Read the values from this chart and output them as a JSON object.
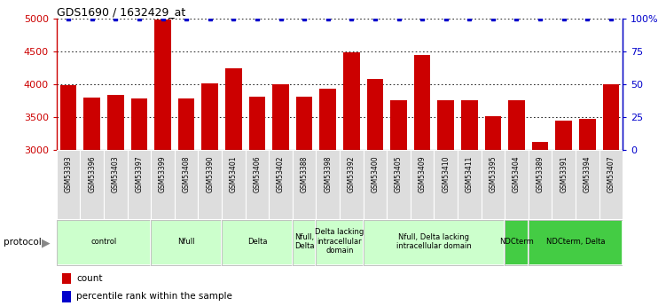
{
  "title": "GDS1690 / 1632429_at",
  "samples": [
    "GSM53393",
    "GSM53396",
    "GSM53403",
    "GSM53397",
    "GSM53399",
    "GSM53408",
    "GSM53390",
    "GSM53401",
    "GSM53406",
    "GSM53402",
    "GSM53388",
    "GSM53398",
    "GSM53392",
    "GSM53400",
    "GSM53405",
    "GSM53409",
    "GSM53410",
    "GSM53411",
    "GSM53395",
    "GSM53404",
    "GSM53389",
    "GSM53391",
    "GSM53394",
    "GSM53407"
  ],
  "counts": [
    3980,
    3790,
    3840,
    3780,
    4980,
    3780,
    4010,
    4240,
    3810,
    4000,
    3810,
    3930,
    4480,
    4080,
    3750,
    4440,
    3750,
    3750,
    3510,
    3760,
    3120,
    3440,
    3470,
    4000
  ],
  "percentile": [
    100,
    100,
    100,
    100,
    100,
    100,
    100,
    100,
    100,
    100,
    100,
    100,
    100,
    100,
    100,
    100,
    100,
    100,
    100,
    100,
    100,
    100,
    100,
    100
  ],
  "ylim_left": [
    3000,
    5000
  ],
  "ylim_right": [
    0,
    100
  ],
  "yticks_left": [
    3000,
    3500,
    4000,
    4500,
    5000
  ],
  "yticks_right": [
    0,
    25,
    50,
    75,
    100
  ],
  "bar_color": "#cc0000",
  "dot_color": "#0000cc",
  "sample_box_color": "#cccccc",
  "protocol_groups": [
    {
      "label": "control",
      "start": 0,
      "end": 4,
      "color": "#ccffcc"
    },
    {
      "label": "Nfull",
      "start": 4,
      "end": 7,
      "color": "#ccffcc"
    },
    {
      "label": "Delta",
      "start": 7,
      "end": 10,
      "color": "#ccffcc"
    },
    {
      "label": "Nfull,\nDelta",
      "start": 10,
      "end": 11,
      "color": "#ccffcc"
    },
    {
      "label": "Delta lacking\nintracellular\ndomain",
      "start": 11,
      "end": 13,
      "color": "#ccffcc"
    },
    {
      "label": "Nfull, Delta lacking\nintracellular domain",
      "start": 13,
      "end": 19,
      "color": "#ccffcc"
    },
    {
      "label": "NDCterm",
      "start": 19,
      "end": 20,
      "color": "#44cc44"
    },
    {
      "label": "NDCterm, Delta",
      "start": 20,
      "end": 24,
      "color": "#44cc44"
    }
  ],
  "legend_count_label": "count",
  "legend_pct_label": "percentile rank within the sample",
  "protocol_arrow_color": "#888888",
  "fig_bg": "#ffffff"
}
